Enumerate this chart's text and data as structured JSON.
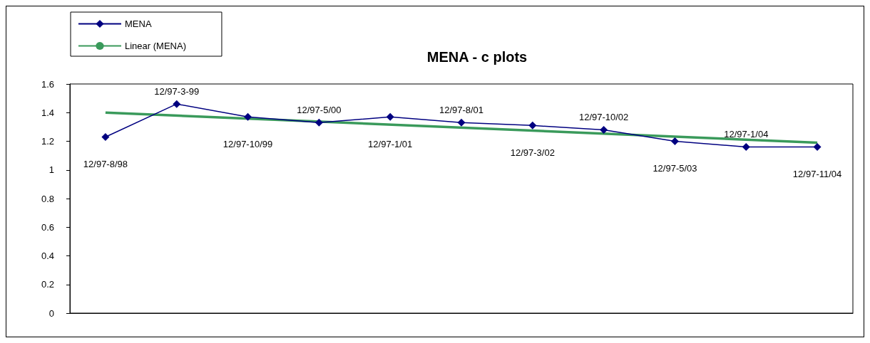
{
  "chart_data": {
    "type": "line",
    "title": "MENA - c plots",
    "categories": [
      "12/97-8/98",
      "12/97-3-99",
      "12/97-10/99",
      "12/97-5/00",
      "12/97-1/01",
      "12/97-8/01",
      "12/97-3/02",
      "12/97-10/02",
      "12/97-5/03",
      "12/97-1/04",
      "12/97-11/04"
    ],
    "series": [
      {
        "name": "MENA",
        "color": "#000080",
        "values": [
          1.23,
          1.46,
          1.37,
          1.33,
          1.37,
          1.33,
          1.31,
          1.28,
          1.2,
          1.16,
          1.16
        ]
      },
      {
        "name": "Linear (MENA)",
        "type": "line",
        "color": "#3a9a5b",
        "x": [
          "12/97-8/98",
          "12/97-11/04"
        ],
        "values": [
          1.4,
          1.19
        ],
        "marker": "none"
      }
    ],
    "ylim": [
      0,
      1.6
    ],
    "yticks": [
      0,
      0.2,
      0.4,
      0.6,
      0.8,
      1,
      1.2,
      1.4,
      1.6
    ],
    "grid": false,
    "legend": "top left",
    "marker": "diamond",
    "line_style": "solid",
    "tick_labels": "y"
  }
}
